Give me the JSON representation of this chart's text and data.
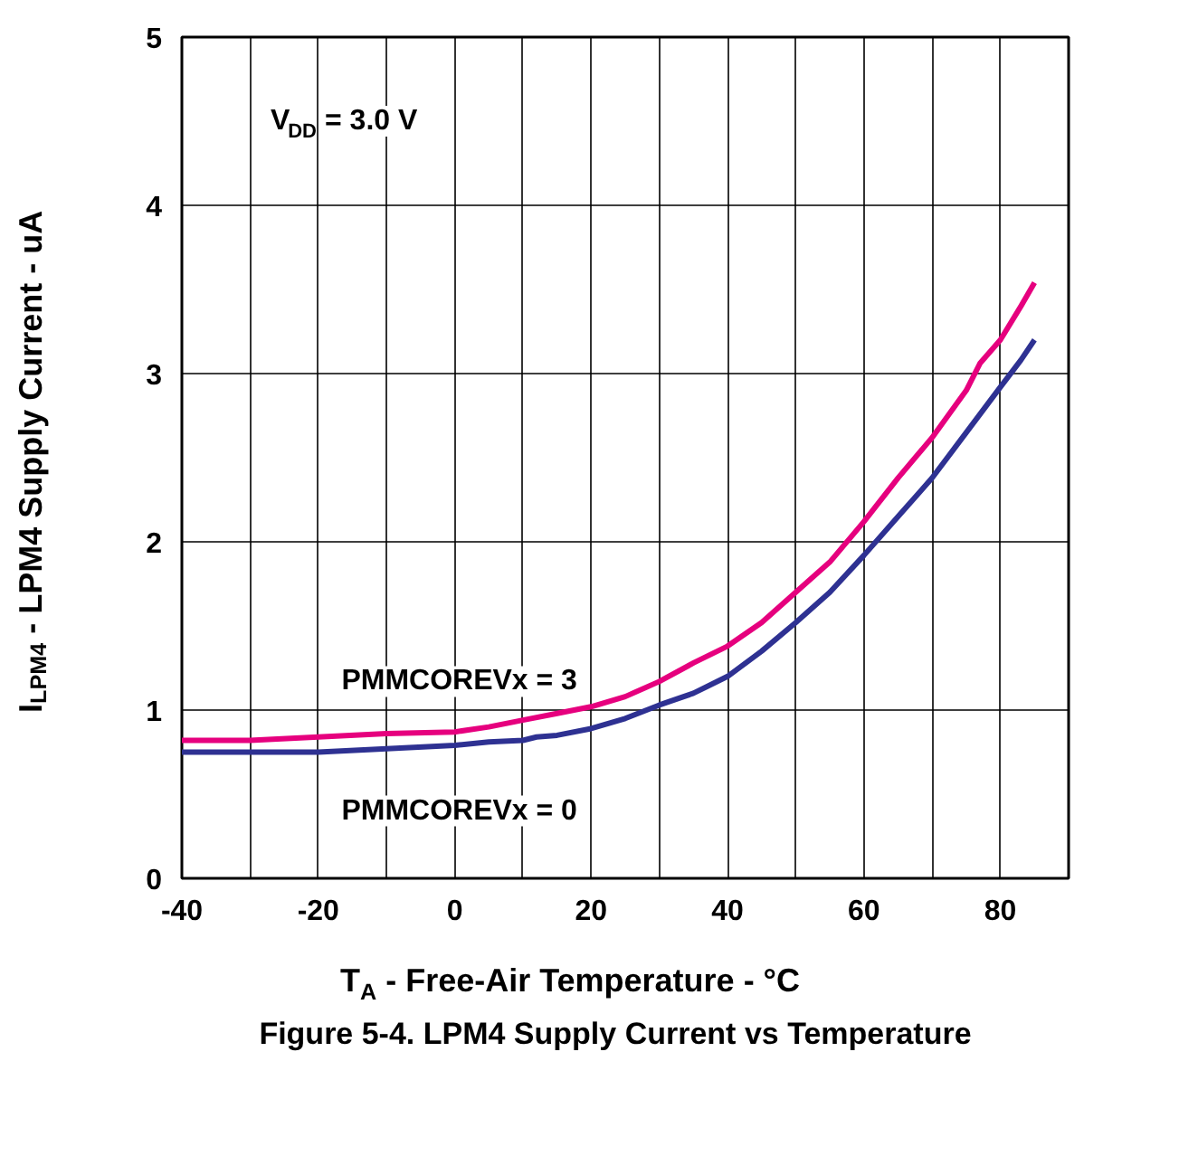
{
  "chart_data": {
    "type": "line",
    "title": "Figure 5-4. LPM4 Supply Current vs Temperature",
    "xlabel": "T$_{A}$ - Free-Air Temperature - °C",
    "ylabel": "I$_{LPM4}$ - LPM4 Supply Current  - uA",
    "annotations": [
      "V$_{DD}$ = 3.0 V"
    ],
    "series": [
      {
        "name": "PMMCOREVx = 3",
        "color": "#e6007e",
        "x": [
          -40,
          -30,
          -20,
          -10,
          0,
          5,
          10,
          15,
          20,
          25,
          30,
          35,
          40,
          45,
          50,
          55,
          60,
          65,
          70,
          75,
          77,
          80,
          83,
          85
        ],
        "values": [
          0.82,
          0.82,
          0.84,
          0.86,
          0.87,
          0.9,
          0.94,
          0.98,
          1.02,
          1.08,
          1.17,
          1.28,
          1.38,
          1.52,
          1.7,
          1.88,
          2.12,
          2.38,
          2.62,
          2.9,
          3.06,
          3.2,
          3.4,
          3.54
        ]
      },
      {
        "name": "PMMCOREVx = 0",
        "color": "#2e3192",
        "x": [
          -40,
          -30,
          -20,
          -10,
          0,
          5,
          10,
          12,
          15,
          20,
          25,
          30,
          35,
          40,
          45,
          50,
          55,
          60,
          65,
          70,
          75,
          80,
          83,
          85
        ],
        "values": [
          0.75,
          0.75,
          0.75,
          0.77,
          0.79,
          0.81,
          0.82,
          0.84,
          0.85,
          0.89,
          0.95,
          1.03,
          1.1,
          1.2,
          1.35,
          1.52,
          1.7,
          1.92,
          2.15,
          2.38,
          2.65,
          2.92,
          3.08,
          3.2
        ]
      }
    ],
    "xlim": [
      -40,
      90
    ],
    "ylim": [
      0,
      5
    ],
    "xticks": [
      -40,
      {
        "value": -30,
        "label": null
      },
      -20,
      {
        "value": -10,
        "label": null
      },
      0,
      {
        "value": 10,
        "label": null
      },
      20,
      {
        "value": 30,
        "label": null
      },
      40,
      {
        "value": 50,
        "label": null
      },
      60,
      {
        "value": 70,
        "label": null
      },
      80,
      {
        "value": 90,
        "label": null
      }
    ],
    "yticks": [
      0,
      1,
      2,
      3,
      4,
      5
    ],
    "grid": true,
    "line_style": "solid",
    "marker": "none"
  }
}
